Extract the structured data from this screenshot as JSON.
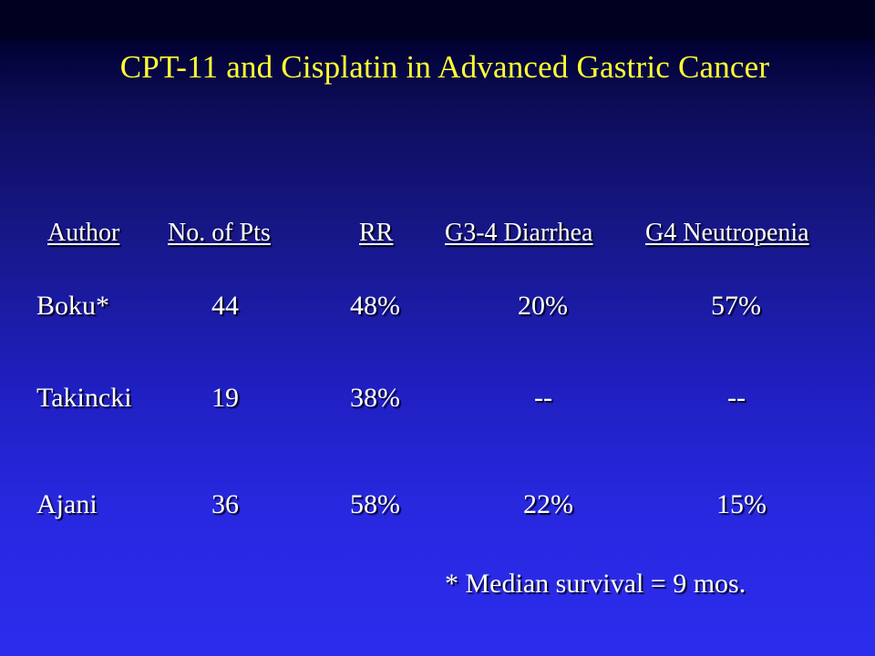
{
  "slide": {
    "title": "CPT-11 and Cisplatin in Advanced Gastric Cancer"
  },
  "table": {
    "headers": [
      "Author",
      "No. of Pts",
      "RR",
      "G3-4 Diarrhea",
      "G4 Neutropenia"
    ],
    "rows": [
      [
        "Boku*",
        "44",
        "48%",
        "20%",
        "57%"
      ],
      [
        "Takincki",
        "19",
        "38%",
        "--",
        "--"
      ],
      [
        "Ajani",
        "36",
        "58%",
        "22%",
        "15%"
      ]
    ]
  },
  "footnote": "* Median survival = 9 mos.",
  "colors": {
    "title": "#ffff33",
    "text": "#ffffff",
    "background_top": "#000030",
    "background_bottom": "#2c2cee"
  }
}
